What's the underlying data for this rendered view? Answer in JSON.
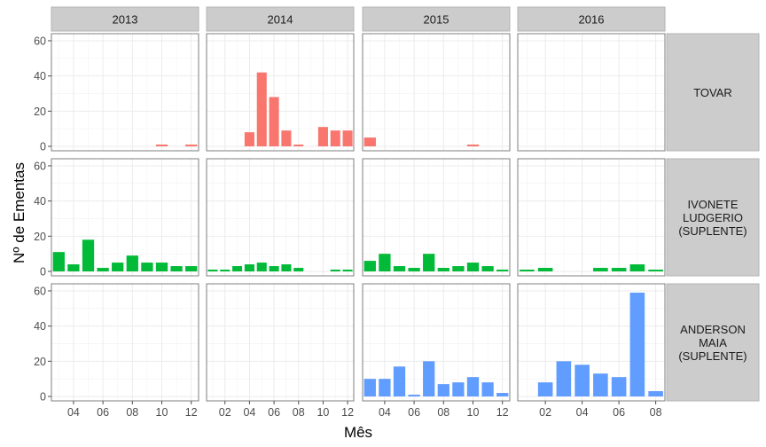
{
  "chart_data": {
    "type": "bar",
    "title": "",
    "xlabel": "Mês",
    "ylabel": "Nº de Ementas",
    "ylim": [
      0,
      62
    ],
    "y_ticks": [
      0,
      20,
      40,
      60
    ],
    "grid": true,
    "legend": "none",
    "facet_columns": [
      {
        "label": "2013",
        "x_range": [
          2.5,
          12.5
        ],
        "x_ticks": [
          "04",
          "06",
          "08",
          "10",
          "12"
        ]
      },
      {
        "label": "2014",
        "x_range": [
          0.5,
          12.5
        ],
        "x_ticks": [
          "02",
          "04",
          "06",
          "08",
          "10",
          "12"
        ]
      },
      {
        "label": "2015",
        "x_range": [
          2.5,
          12.5
        ],
        "x_ticks": [
          "04",
          "06",
          "08",
          "10",
          "12"
        ]
      },
      {
        "label": "2016",
        "x_range": [
          0.5,
          8.5
        ],
        "x_ticks": [
          "02",
          "04",
          "06",
          "08"
        ]
      }
    ],
    "facet_rows": [
      {
        "label": "TOVAR",
        "color": "#f8766d",
        "panels": [
          {
            "months": [
              10,
              12
            ],
            "values": [
              1,
              1
            ]
          },
          {
            "months": [
              4,
              5,
              6,
              7,
              8,
              10,
              11,
              12
            ],
            "values": [
              8,
              42,
              28,
              9,
              1,
              11,
              9,
              9
            ]
          },
          {
            "months": [
              3,
              10
            ],
            "values": [
              5,
              1
            ]
          },
          {
            "months": [],
            "values": []
          }
        ]
      },
      {
        "label": "IVONETE LUDGERIO (SUPLENTE)",
        "color": "#00ba38",
        "panels": [
          {
            "months": [
              3,
              4,
              5,
              6,
              7,
              8,
              9,
              10,
              11,
              12
            ],
            "values": [
              11,
              4,
              18,
              2,
              5,
              9,
              5,
              5,
              3,
              3
            ]
          },
          {
            "months": [
              1,
              2,
              3,
              4,
              5,
              6,
              7,
              8,
              11,
              12
            ],
            "values": [
              1,
              1,
              3,
              4,
              5,
              3,
              4,
              2,
              1,
              1
            ]
          },
          {
            "months": [
              3,
              4,
              5,
              6,
              7,
              8,
              9,
              10,
              11,
              12
            ],
            "values": [
              6,
              10,
              3,
              2,
              10,
              2,
              3,
              5,
              3,
              1
            ]
          },
          {
            "months": [
              1,
              2,
              5,
              6,
              7,
              8
            ],
            "values": [
              1,
              2,
              2,
              2,
              4,
              1
            ]
          }
        ]
      },
      {
        "label": "ANDERSON MAIA (SUPLENTE)",
        "color": "#619cff",
        "panels": [
          {
            "months": [],
            "values": []
          },
          {
            "months": [],
            "values": []
          },
          {
            "months": [
              3,
              4,
              5,
              6,
              7,
              8,
              9,
              10,
              11,
              12
            ],
            "values": [
              10,
              10,
              17,
              1,
              20,
              7,
              8,
              11,
              8,
              2
            ]
          },
          {
            "months": [
              2,
              3,
              4,
              5,
              6,
              7,
              8
            ],
            "values": [
              8,
              20,
              18,
              13,
              11,
              59,
              3
            ]
          }
        ]
      }
    ]
  }
}
